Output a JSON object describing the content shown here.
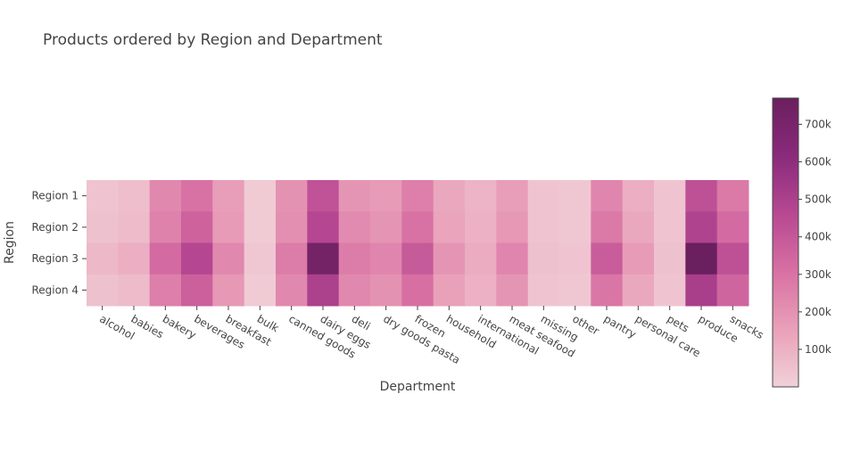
{
  "chart_data": {
    "type": "heatmap",
    "title": "Products ordered by Region and Department",
    "xlabel": "Department",
    "ylabel": "Region",
    "x": [
      "alcohol",
      "babies",
      "bakery",
      "beverages",
      "breakfast",
      "bulk",
      "canned goods",
      "dairy eggs",
      "deli",
      "dry goods pasta",
      "frozen",
      "household",
      "international",
      "meat seafood",
      "missing",
      "other",
      "pantry",
      "personal care",
      "pets",
      "produce",
      "snacks"
    ],
    "y": [
      "Region 1",
      "Region 2",
      "Region 3",
      "Region 4"
    ],
    "z": [
      [
        45000,
        60000,
        230000,
        300000,
        160000,
        20000,
        200000,
        420000,
        190000,
        170000,
        260000,
        130000,
        90000,
        160000,
        40000,
        30000,
        240000,
        110000,
        40000,
        430000,
        280000
      ],
      [
        50000,
        70000,
        250000,
        360000,
        170000,
        20000,
        210000,
        470000,
        220000,
        190000,
        300000,
        140000,
        100000,
        180000,
        40000,
        30000,
        280000,
        130000,
        40000,
        490000,
        330000
      ],
      [
        80000,
        110000,
        330000,
        470000,
        230000,
        30000,
        270000,
        720000,
        270000,
        240000,
        390000,
        190000,
        120000,
        240000,
        50000,
        40000,
        380000,
        170000,
        50000,
        770000,
        430000
      ],
      [
        50000,
        70000,
        260000,
        370000,
        180000,
        20000,
        230000,
        500000,
        230000,
        200000,
        310000,
        150000,
        100000,
        190000,
        40000,
        30000,
        290000,
        130000,
        40000,
        510000,
        350000
      ]
    ],
    "zrange": [
      0,
      770000
    ],
    "colorbar": {
      "ticks": [
        100000,
        200000,
        300000,
        400000,
        500000,
        600000,
        700000
      ],
      "ticklabels": [
        "100k",
        "200k",
        "300k",
        "400k",
        "500k",
        "600k",
        "700k"
      ]
    },
    "colorscale": [
      "#f1d1d8",
      "#e9a0b9",
      "#d870a3",
      "#b74892",
      "#8a2a7b",
      "#6a1f5e"
    ]
  }
}
